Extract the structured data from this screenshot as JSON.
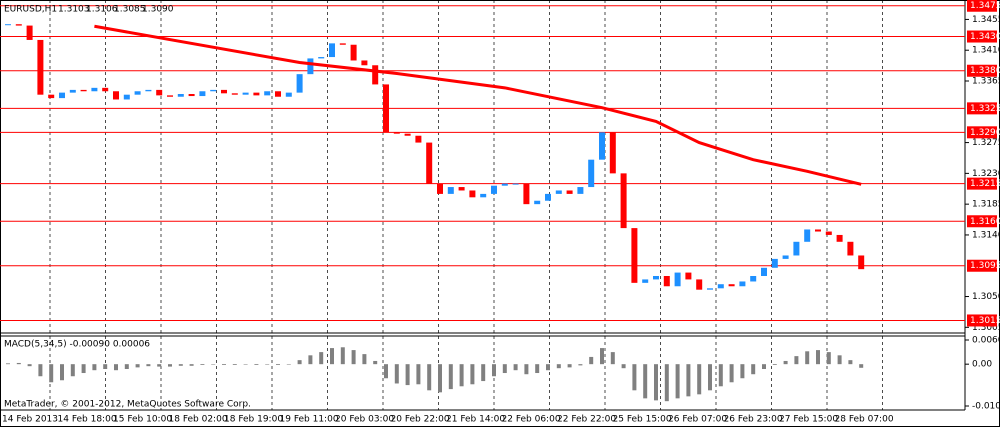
{
  "chart_data": {
    "type": "candlestick",
    "symbol": "EURUSD,H1",
    "ohlc": [
      1.3103,
      1.3106,
      1.3085,
      {
        "value": 1.309,
        "label": "1.3090"
      }
    ],
    "ylim": [
      1.3004,
      1.3479
    ],
    "yticks": [
      1.3455,
      {
        "value": 1.341,
        "label": "1.3410"
      },
      1.3365,
      1.3275,
      {
        "value": 1.323,
        "label": "1.3230"
      },
      1.3185,
      {
        "value": 1.314,
        "label": "1.3140"
      },
      {
        "value": 1.305,
        "label": "1.3050"
      },
      1.3005
    ],
    "levels": [
      1.3475,
      {
        "value": 1.343,
        "label": "1.3430"
      },
      {
        "value": 1.338,
        "label": "1.3380"
      },
      1.3325,
      {
        "value": 1.329,
        "label": "1.3290"
      },
      1.3215,
      {
        "value": 1.316,
        "label": "1.3160"
      },
      1.3095,
      1.3015
    ],
    "level_color": "#ff0000",
    "up_color": "#1e90ff",
    "down_color": "#ff0000",
    "x_labels": [
      "14 Feb 2013",
      "14 Feb 18:00",
      "15 Feb 10:00",
      "18 Feb 02:00",
      "18 Feb 19:00",
      "19 Feb 11:00",
      "20 Feb 03:00",
      "20 Feb 22:00",
      "21 Feb 14:00",
      "22 Feb 06:00",
      "22 Feb 22:00",
      "25 Feb 15:00",
      "26 Feb 07:00",
      "26 Feb 23:00",
      "27 Feb 15:00",
      "28 Feb 07:00"
    ],
    "closes": [
      1.3448,
      1.3446,
      1.3425,
      1.3345,
      1.334,
      1.3348,
      1.3352,
      1.335,
      1.3355,
      1.335,
      1.3338,
      1.3345,
      1.335,
      1.3352,
      1.3344,
      1.3342,
      1.3346,
      1.3343,
      1.335,
      1.3352,
      1.3347,
      1.3345,
      1.3348,
      1.3344,
      1.335,
      1.3342,
      1.3348,
      1.3375,
      1.3398,
      1.34,
      1.342,
      1.3418,
      1.3395,
      1.3388,
      1.336,
      1.329,
      1.3288,
      1.3285,
      1.3275,
      1.3215,
      1.32,
      1.321,
      1.3205,
      1.3195,
      1.32,
      1.3212,
      1.3215,
      1.3215,
      1.3185,
      1.319,
      1.32,
      1.3205,
      1.32,
      1.321,
      1.325,
      1.329,
      1.323,
      1.315,
      1.307,
      1.3075,
      1.308,
      1.3065,
      1.3085,
      1.3075,
      1.306,
      1.3062,
      1.3068,
      1.3065,
      1.3072,
      1.308,
      1.3092,
      1.3105,
      1.311,
      1.313,
      1.3148,
      1.3145,
      1.314,
      1.313,
      1.311,
      1.309
    ],
    "ma": {
      "color": "#ff0000",
      "index": [
        8,
        27,
        36,
        46,
        55,
        60,
        64,
        69,
        74,
        79
      ],
      "values": [
        1.3445,
        1.3392,
        1.3376,
        1.3355,
        1.3326,
        1.3306,
        1.3275,
        1.325,
        1.3233,
        1.3214
      ]
    },
    "macd": {
      "title": "MACD(5,34,5) -0.00090 0.00006",
      "color": "#808080",
      "ylim": [
        -0.0104,
        0.00601
      ],
      "yticks": [
        0.00601,
        {
          "value": 0,
          "label": "0.00"
        },
        -0.0104
      ],
      "values": [
        0.0002,
        0.0003,
        -0.0005,
        -0.003,
        -0.0045,
        -0.004,
        -0.003,
        -0.0022,
        -0.0015,
        -0.0012,
        -0.0015,
        -0.0012,
        -0.0008,
        -0.0005,
        -0.0006,
        -0.0006,
        -0.0004,
        -0.0004,
        -0.0002,
        -0.0001,
        -0.0002,
        -0.0002,
        -0.0001,
        -0.0002,
        0,
        -0.0002,
        0,
        0.001,
        0.0022,
        0.003,
        0.004,
        0.0042,
        0.0035,
        0.0025,
        0.0008,
        -0.0035,
        -0.0048,
        -0.0052,
        -0.005,
        -0.0065,
        -0.007,
        -0.0062,
        -0.0055,
        -0.005,
        -0.0042,
        -0.003,
        -0.0022,
        -0.0015,
        -0.0025,
        -0.0022,
        -0.0015,
        -0.001,
        -0.0008,
        -0.0003,
        0.0018,
        0.004,
        0.003,
        -0.001,
        -0.0065,
        -0.0085,
        -0.009,
        -0.0092,
        -0.0085,
        -0.008,
        -0.0075,
        -0.0065,
        -0.0055,
        -0.0045,
        -0.0035,
        -0.0025,
        -0.0012,
        -0.0002,
        0.0008,
        0.002,
        0.0032,
        0.0035,
        0.003,
        0.0022,
        0.001,
        -0.0009
      ]
    },
    "footer": "MetaTrader, © 2001-2012, MetaQuotes Software Corp."
  }
}
